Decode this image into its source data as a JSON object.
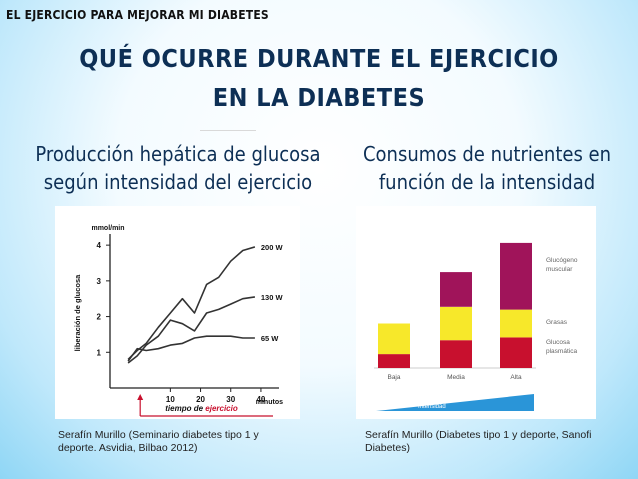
{
  "header": {
    "section_label": "EL EJERCICIO PARA MEJORAR MI DIABETES",
    "title_line1": "QUÉ OCURRE DURANTE EL EJERCICIO",
    "title_line2": "EN LA DIABETES"
  },
  "left_panel": {
    "subtitle_line1": "Producción hepática de glucosa",
    "subtitle_line2": "según intensidad del ejercicio",
    "caption": "Serafín Murillo (Seminario diabetes tipo 1 y deporte. Asvidia, Bilbao 2012)"
  },
  "right_panel": {
    "subtitle_line1": "Consumos de nutrientes en",
    "subtitle_line2": "función de la intensidad",
    "caption": "Serafín Murillo (Diabetes tipo 1 y deporte, Sanofi Diabetes)"
  },
  "colors": {
    "title": "#0d2f55",
    "glucogeno": "#a0145a",
    "grasas": "#f7e82a",
    "glucosa": "#c8102e",
    "intensidad": "#2a95d8",
    "line": "#333333",
    "axis_highlight": "#c8102e"
  },
  "chart_data": [
    {
      "type": "line",
      "ylabel": "liberación de glucosa",
      "yunit": "mmol/min",
      "xlabel_prefix": "tiempo de",
      "xlabel_highlight": "ejercicio",
      "xunit": "minutos",
      "xticks": [
        10,
        20,
        30,
        40
      ],
      "yticks": [
        1,
        2,
        3,
        4
      ],
      "xlim": [
        -10,
        44
      ],
      "ylim": [
        0,
        4.2
      ],
      "series": [
        {
          "name": "200 W",
          "x": [
            -4,
            -1,
            2,
            6,
            10,
            14,
            18,
            22,
            26,
            30,
            34,
            38
          ],
          "y": [
            0.8,
            1.05,
            1.25,
            1.7,
            2.1,
            2.5,
            2.1,
            2.9,
            3.1,
            3.55,
            3.85,
            3.95
          ]
        },
        {
          "name": "130 W",
          "x": [
            -4,
            -1,
            2,
            6,
            10,
            14,
            18,
            22,
            26,
            30,
            34,
            38
          ],
          "y": [
            0.7,
            0.9,
            1.2,
            1.45,
            1.9,
            1.8,
            1.6,
            2.1,
            2.2,
            2.35,
            2.5,
            2.55
          ]
        },
        {
          "name": "65 W",
          "x": [
            -4,
            -1,
            2,
            6,
            10,
            14,
            18,
            22,
            26,
            30,
            34,
            38
          ],
          "y": [
            0.75,
            1.1,
            1.05,
            1.1,
            1.2,
            1.25,
            1.4,
            1.45,
            1.45,
            1.45,
            1.4,
            1.4
          ]
        }
      ]
    },
    {
      "type": "bar",
      "stacked": true,
      "categories": [
        "Baja",
        "Media",
        "Alta"
      ],
      "series": [
        {
          "name": "Glucosa plasmática",
          "values": [
            1,
            2,
            2.2
          ]
        },
        {
          "name": "Grasas",
          "values": [
            2.2,
            2.4,
            2
          ]
        },
        {
          "name": "Glucógeno muscular",
          "values": [
            0,
            2.5,
            4.8
          ]
        }
      ],
      "arrow_label": "Intensidad",
      "ylim": [
        0,
        9.5
      ]
    }
  ]
}
